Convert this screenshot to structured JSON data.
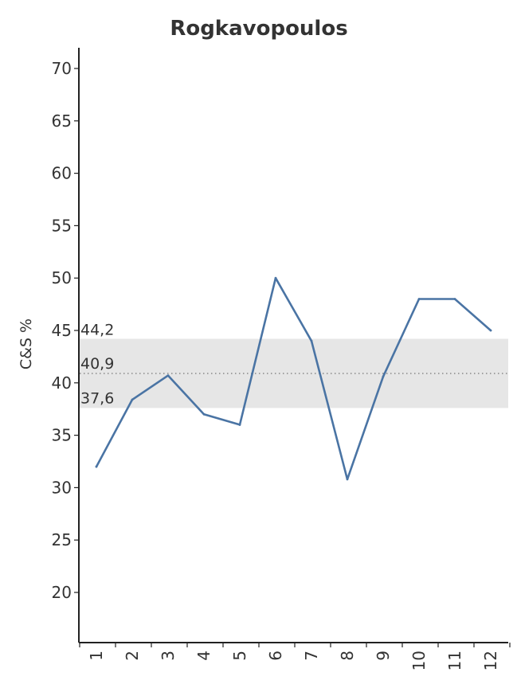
{
  "chart_data": {
    "type": "line",
    "title": "Rogkavopoulos",
    "xlabel": "",
    "ylabel": "C&S %",
    "x": [
      1,
      2,
      3,
      4,
      5,
      6,
      7,
      8,
      9,
      10,
      11,
      12
    ],
    "x_tick_labels": [
      "1",
      "2",
      "3",
      "4",
      "5",
      "6",
      "7",
      "8",
      "9",
      "10",
      "11",
      "12"
    ],
    "series": [
      {
        "values": [
          32.0,
          38.4,
          40.7,
          37.0,
          36.0,
          50.0,
          44.0,
          30.8,
          40.6,
          48.0,
          48.0,
          45.0
        ]
      }
    ],
    "ylim": [
      15,
      72
    ],
    "y_ticks": [
      20,
      25,
      30,
      35,
      40,
      45,
      50,
      55,
      60,
      65,
      70
    ],
    "band": {
      "lower": 37.6,
      "mean": 40.9,
      "upper": 44.2,
      "lower_label": "37,6",
      "mean_label": "40,9",
      "upper_label": "44,2"
    },
    "grid": false,
    "legend": "none",
    "colors": {
      "line": "#4a74a4",
      "band": "#e6e6e6",
      "mean_line": "#888888",
      "axis": "#222222",
      "text": "#333333"
    }
  }
}
